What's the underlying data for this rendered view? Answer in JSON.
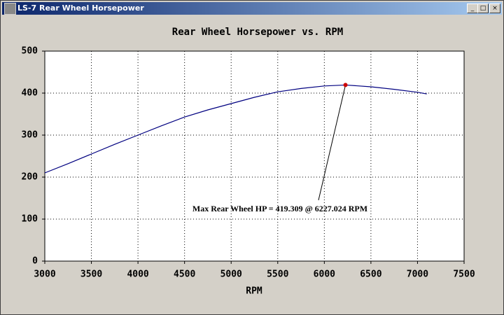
{
  "window": {
    "title": "LS-7 Rear Wheel Horsepower"
  },
  "chart_data": {
    "type": "line",
    "title": "Rear Wheel Horsepower vs. RPM",
    "x_label": "RPM",
    "x": [
      3000,
      3250,
      3500,
      3750,
      4000,
      4250,
      4500,
      4750,
      5000,
      5250,
      5500,
      5750,
      6000,
      6227.024,
      6500,
      6750,
      7000,
      7100
    ],
    "series": [
      {
        "name": "Rear Wheel HP",
        "color": "#000080",
        "values": [
          210,
          232,
          255,
          278,
          300,
          322,
          343,
          360,
          375,
          390,
          403,
          411,
          417,
          419.309,
          415,
          409,
          402,
          398
        ]
      }
    ],
    "max_point": {
      "x": 6227.024,
      "y": 419.309,
      "color": "#cc0000"
    },
    "annotation": "Max Rear Wheel HP = 419.309 @ 6227.024 RPM",
    "xlim": [
      3000,
      7500
    ],
    "xticks": [
      3000,
      3500,
      4000,
      4500,
      5000,
      5500,
      6000,
      6500,
      7000,
      7500
    ],
    "ylim": [
      0,
      500
    ],
    "yticks": [
      0,
      100,
      200,
      300,
      400,
      500
    ],
    "grid": true
  }
}
